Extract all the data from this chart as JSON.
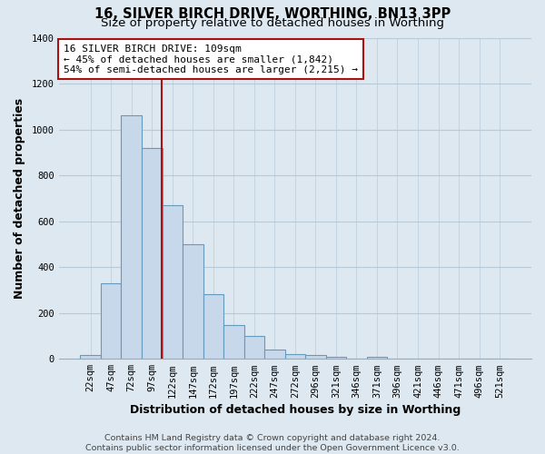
{
  "title": "16, SILVER BIRCH DRIVE, WORTHING, BN13 3PP",
  "subtitle": "Size of property relative to detached houses in Worthing",
  "xlabel": "Distribution of detached houses by size in Worthing",
  "ylabel": "Number of detached properties",
  "bar_labels": [
    "22sqm",
    "47sqm",
    "72sqm",
    "97sqm",
    "122sqm",
    "147sqm",
    "172sqm",
    "197sqm",
    "222sqm",
    "247sqm",
    "272sqm",
    "296sqm",
    "321sqm",
    "346sqm",
    "371sqm",
    "396sqm",
    "421sqm",
    "446sqm",
    "471sqm",
    "496sqm",
    "521sqm"
  ],
  "bar_values": [
    18,
    330,
    1060,
    920,
    670,
    500,
    280,
    148,
    100,
    40,
    22,
    18,
    10,
    0,
    10,
    0,
    0,
    0,
    0,
    0,
    0
  ],
  "bar_color": "#c8d8eb",
  "bar_edge_color": "#6699bb",
  "annotation_line1": "16 SILVER BIRCH DRIVE: 109sqm",
  "annotation_line2": "← 45% of detached houses are smaller (1,842)",
  "annotation_line3": "54% of semi-detached houses are larger (2,215) →",
  "annotation_box_color": "#aa1111",
  "red_line_x": 3.48,
  "ylim": [
    0,
    1400
  ],
  "yticks": [
    0,
    200,
    400,
    600,
    800,
    1000,
    1200,
    1400
  ],
  "footer_line1": "Contains HM Land Registry data © Crown copyright and database right 2024.",
  "footer_line2": "Contains public sector information licensed under the Open Government Licence v3.0.",
  "background_color": "#dde8f0",
  "plot_background_color": "#dde8f0",
  "grid_color": "#b8cad8",
  "title_fontsize": 10.5,
  "subtitle_fontsize": 9.5,
  "axis_label_fontsize": 9,
  "tick_fontsize": 7.5,
  "footer_fontsize": 6.8,
  "annotation_fontsize": 8
}
